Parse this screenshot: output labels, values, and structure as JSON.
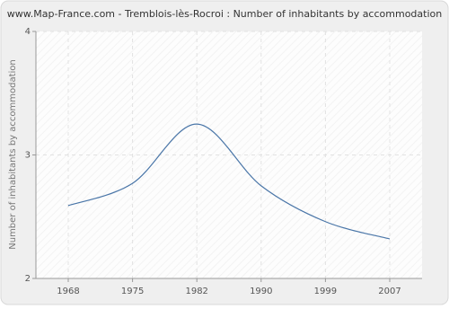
{
  "chart_data": {
    "type": "line",
    "title": "www.Map-France.com - Tremblois-lès-Rocroi : Number of inhabitants by accommodation",
    "y_label": "Number of inhabitants by accommodation",
    "categories": [
      "1968",
      "1975",
      "1982",
      "1990",
      "1999",
      "2007"
    ],
    "series": [
      {
        "name": "Tremblois-lès-Rocroi",
        "color": "#4a76a8",
        "values": [
          2.59,
          2.77,
          3.25,
          2.75,
          2.46,
          2.32
        ]
      }
    ],
    "ylim": [
      2,
      4
    ],
    "yticks": [
      2,
      3,
      4
    ],
    "grid": true
  }
}
